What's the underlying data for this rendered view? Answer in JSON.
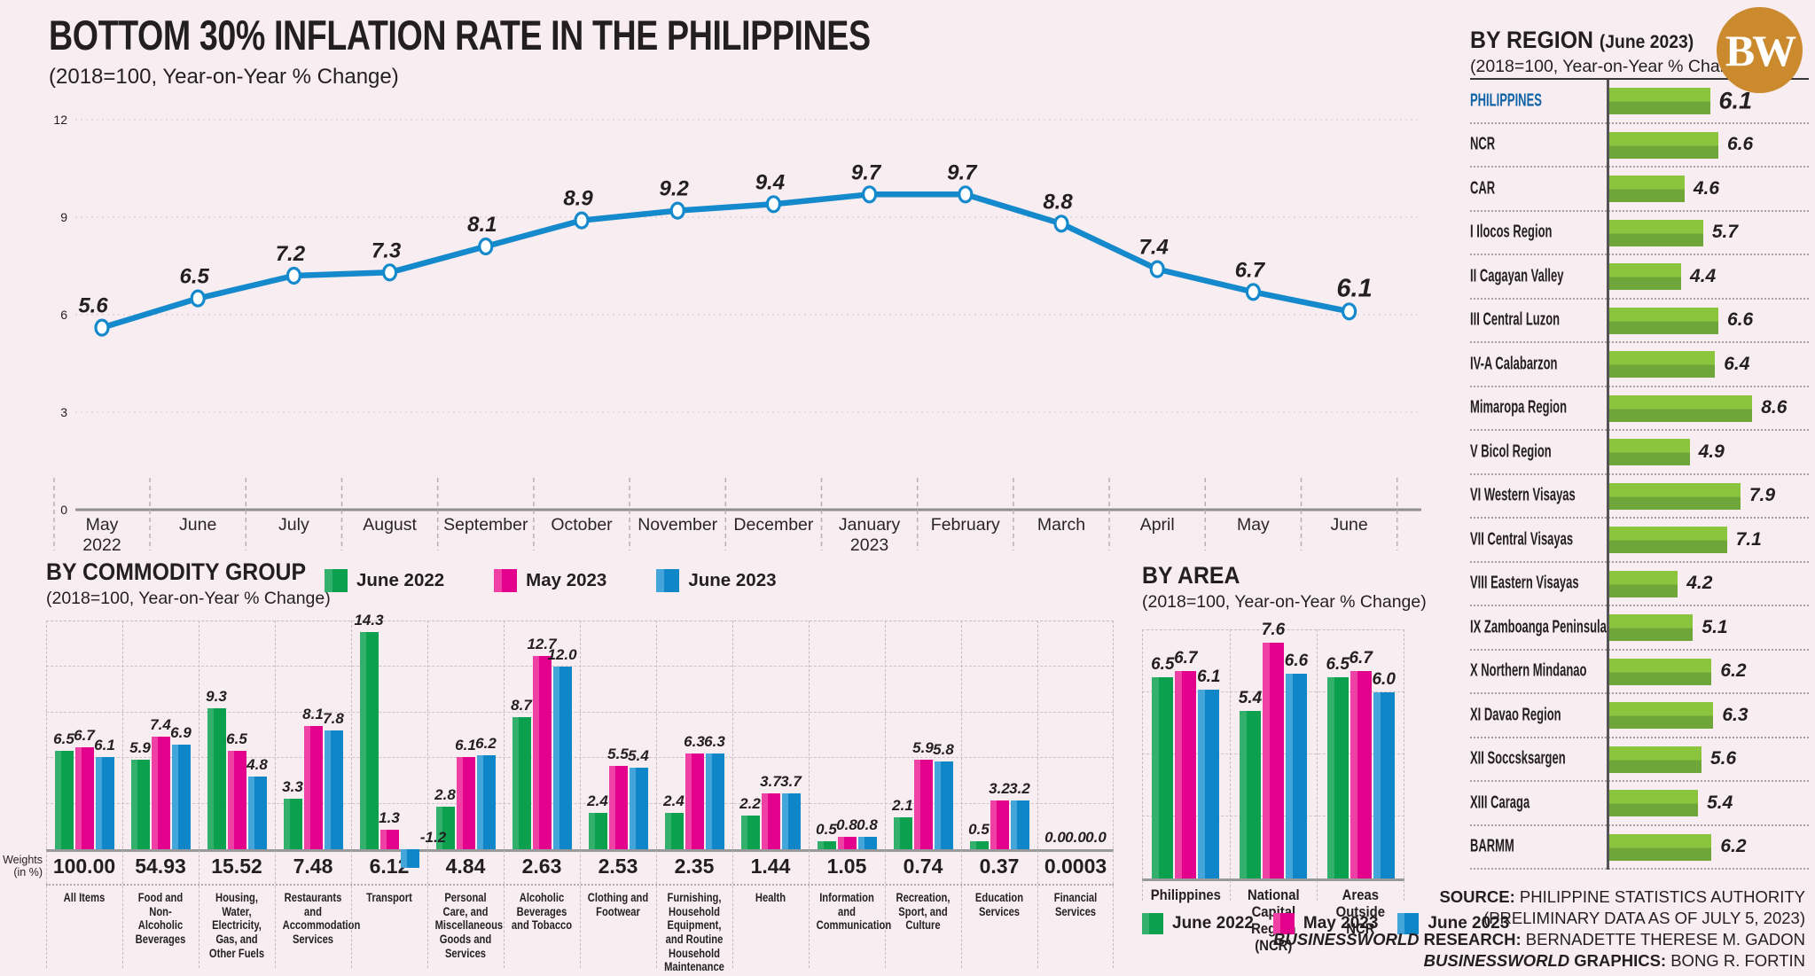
{
  "header": {
    "title": "BOTTOM 30% INFLATION RATE IN THE PHILIPPINES",
    "subtitle": "(2018=100, Year-on-Year % Change)"
  },
  "logo": {
    "text": "BW"
  },
  "colors": {
    "background": "#f8edf1",
    "line_blue": "#1489cb",
    "june2022_green": "#0ba04e",
    "may2023_pink": "#e3008c",
    "june2023_blue": "#0f86c7",
    "region_green_top": "#8bc53e",
    "region_green_bottom": "#6fa63a",
    "philippines_blue": "#0f63a5",
    "logo_orange": "#cc8a2e"
  },
  "chart_data": [
    {
      "id": "bottom30-inflation-line",
      "type": "line",
      "title": "BOTTOM 30% INFLATION RATE IN THE PHILIPPINES",
      "subtitle": "(2018=100, Year-on-Year % Change)",
      "categories": [
        "May",
        "June",
        "July",
        "August",
        "September",
        "October",
        "November",
        "December",
        "January",
        "February",
        "March",
        "April",
        "May",
        "June"
      ],
      "year_labels": [
        {
          "index": 0,
          "label": "2022"
        },
        {
          "index": 8,
          "label": "2023"
        }
      ],
      "values": [
        5.6,
        6.5,
        7.2,
        7.3,
        8.1,
        8.9,
        9.2,
        9.4,
        9.7,
        9.7,
        8.8,
        7.4,
        6.7,
        6.1
      ],
      "ylim": [
        0,
        12
      ],
      "yticks": [
        0,
        3,
        6,
        9,
        12
      ],
      "grid": "dotted-horizontal",
      "line_color": "#1489cb"
    },
    {
      "id": "by-commodity-group",
      "type": "bar",
      "title": "BY COMMODITY GROUP",
      "subtitle": "(2018=100, Year-on-Year % Change)",
      "weights_label": [
        "Weights",
        "(in %)"
      ],
      "categories": [
        "All Items",
        "Food and Non-Alcoholic Beverages",
        "Housing, Water, Electricity, Gas, and Other Fuels",
        "Restaurants and Accommodation Services",
        "Transport",
        "Personal Care, and Miscellaneous Goods and Services",
        "Alcoholic Beverages and Tobacco",
        "Clothing and Footwear",
        "Furnishing, Household Equipment, and Routine Household Maintenance",
        "Health",
        "Information and Communication",
        "Recreation, Sport, and Culture",
        "Education Services",
        "Financial Services"
      ],
      "weights": [
        "100.00",
        "54.93",
        "15.52",
        "7.48",
        "6.12",
        "4.84",
        "2.63",
        "2.53",
        "2.35",
        "1.44",
        "1.05",
        "0.74",
        "0.37",
        "0.0003"
      ],
      "series": [
        {
          "name": "June 2022",
          "color": "#0ba04e",
          "color_light": "#33b16c",
          "values": [
            6.5,
            5.9,
            9.3,
            3.3,
            14.3,
            2.8,
            8.7,
            2.4,
            2.4,
            2.2,
            0.5,
            2.1,
            0.5,
            0.0
          ]
        },
        {
          "name": "May 2023",
          "color": "#e3008c",
          "color_light": "#ef41a5",
          "values": [
            6.7,
            7.4,
            6.5,
            8.1,
            1.3,
            6.1,
            12.7,
            5.5,
            6.3,
            3.7,
            0.8,
            5.9,
            3.2,
            0.0
          ]
        },
        {
          "name": "June 2023",
          "color": "#0f86c7",
          "color_light": "#44a5da",
          "values": [
            6.1,
            6.9,
            4.8,
            7.8,
            -1.2,
            6.2,
            12.0,
            5.4,
            6.3,
            3.7,
            0.8,
            5.8,
            3.2,
            0.0
          ]
        }
      ],
      "ylim": [
        -1.5,
        15
      ]
    },
    {
      "id": "by-area",
      "type": "bar",
      "title": "BY AREA",
      "subtitle": "(2018=100, Year-on-Year % Change)",
      "categories": [
        "Philippines",
        "National Capital Region (NCR)",
        "Areas Outside NCR"
      ],
      "series": [
        {
          "name": "June 2022",
          "color": "#0ba04e",
          "color_light": "#33b16c",
          "values": [
            6.5,
            5.4,
            6.5
          ]
        },
        {
          "name": "May 2023",
          "color": "#e3008c",
          "color_light": "#ef41a5",
          "values": [
            6.7,
            7.6,
            6.7
          ]
        },
        {
          "name": "June 2023",
          "color": "#0f86c7",
          "color_light": "#44a5da",
          "values": [
            6.1,
            6.6,
            6.0
          ]
        }
      ],
      "ylim": [
        0,
        8
      ]
    },
    {
      "id": "by-region",
      "type": "bar",
      "orientation": "horizontal",
      "title": "BY REGION",
      "title_suffix": "(June 2023)",
      "subtitle": "(2018=100, Year-on-Year % Change)",
      "categories": [
        "PHILIPPINES",
        "NCR",
        "CAR",
        "I Ilocos Region",
        "II Cagayan Valley",
        "III Central Luzon",
        "IV-A Calabarzon",
        "Mimaropa Region",
        "V Bicol Region",
        "VI Western Visayas",
        "VII Central Visayas",
        "VIII Eastern Visayas",
        "IX Zamboanga Peninsula",
        "X Northern Mindanao",
        "XI Davao Region",
        "XII Soccsksargen",
        "XIII Caraga",
        "BARMM"
      ],
      "values": [
        6.1,
        6.6,
        4.6,
        5.7,
        4.4,
        6.6,
        6.4,
        8.6,
        4.9,
        7.9,
        7.1,
        4.2,
        5.1,
        6.2,
        6.3,
        5.6,
        5.4,
        6.2
      ],
      "highlight_index": 0,
      "bar_color_top": "#8bc53e",
      "bar_color_bottom": "#6fa63a"
    }
  ],
  "footer": {
    "source_label": "SOURCE:",
    "source_value": "PHILIPPINE STATISTICS AUTHORITY",
    "source_note": "(PRELIMINARY DATA AS OF JULY 5, 2023)",
    "research_brand": "BUSINESSWORLD",
    "research_label": "RESEARCH:",
    "research_value": "BERNADETTE THERESE M. GADON",
    "graphics_brand": "BUSINESSWORLD",
    "graphics_label": "GRAPHICS:",
    "graphics_value": "BONG R. FORTIN"
  }
}
